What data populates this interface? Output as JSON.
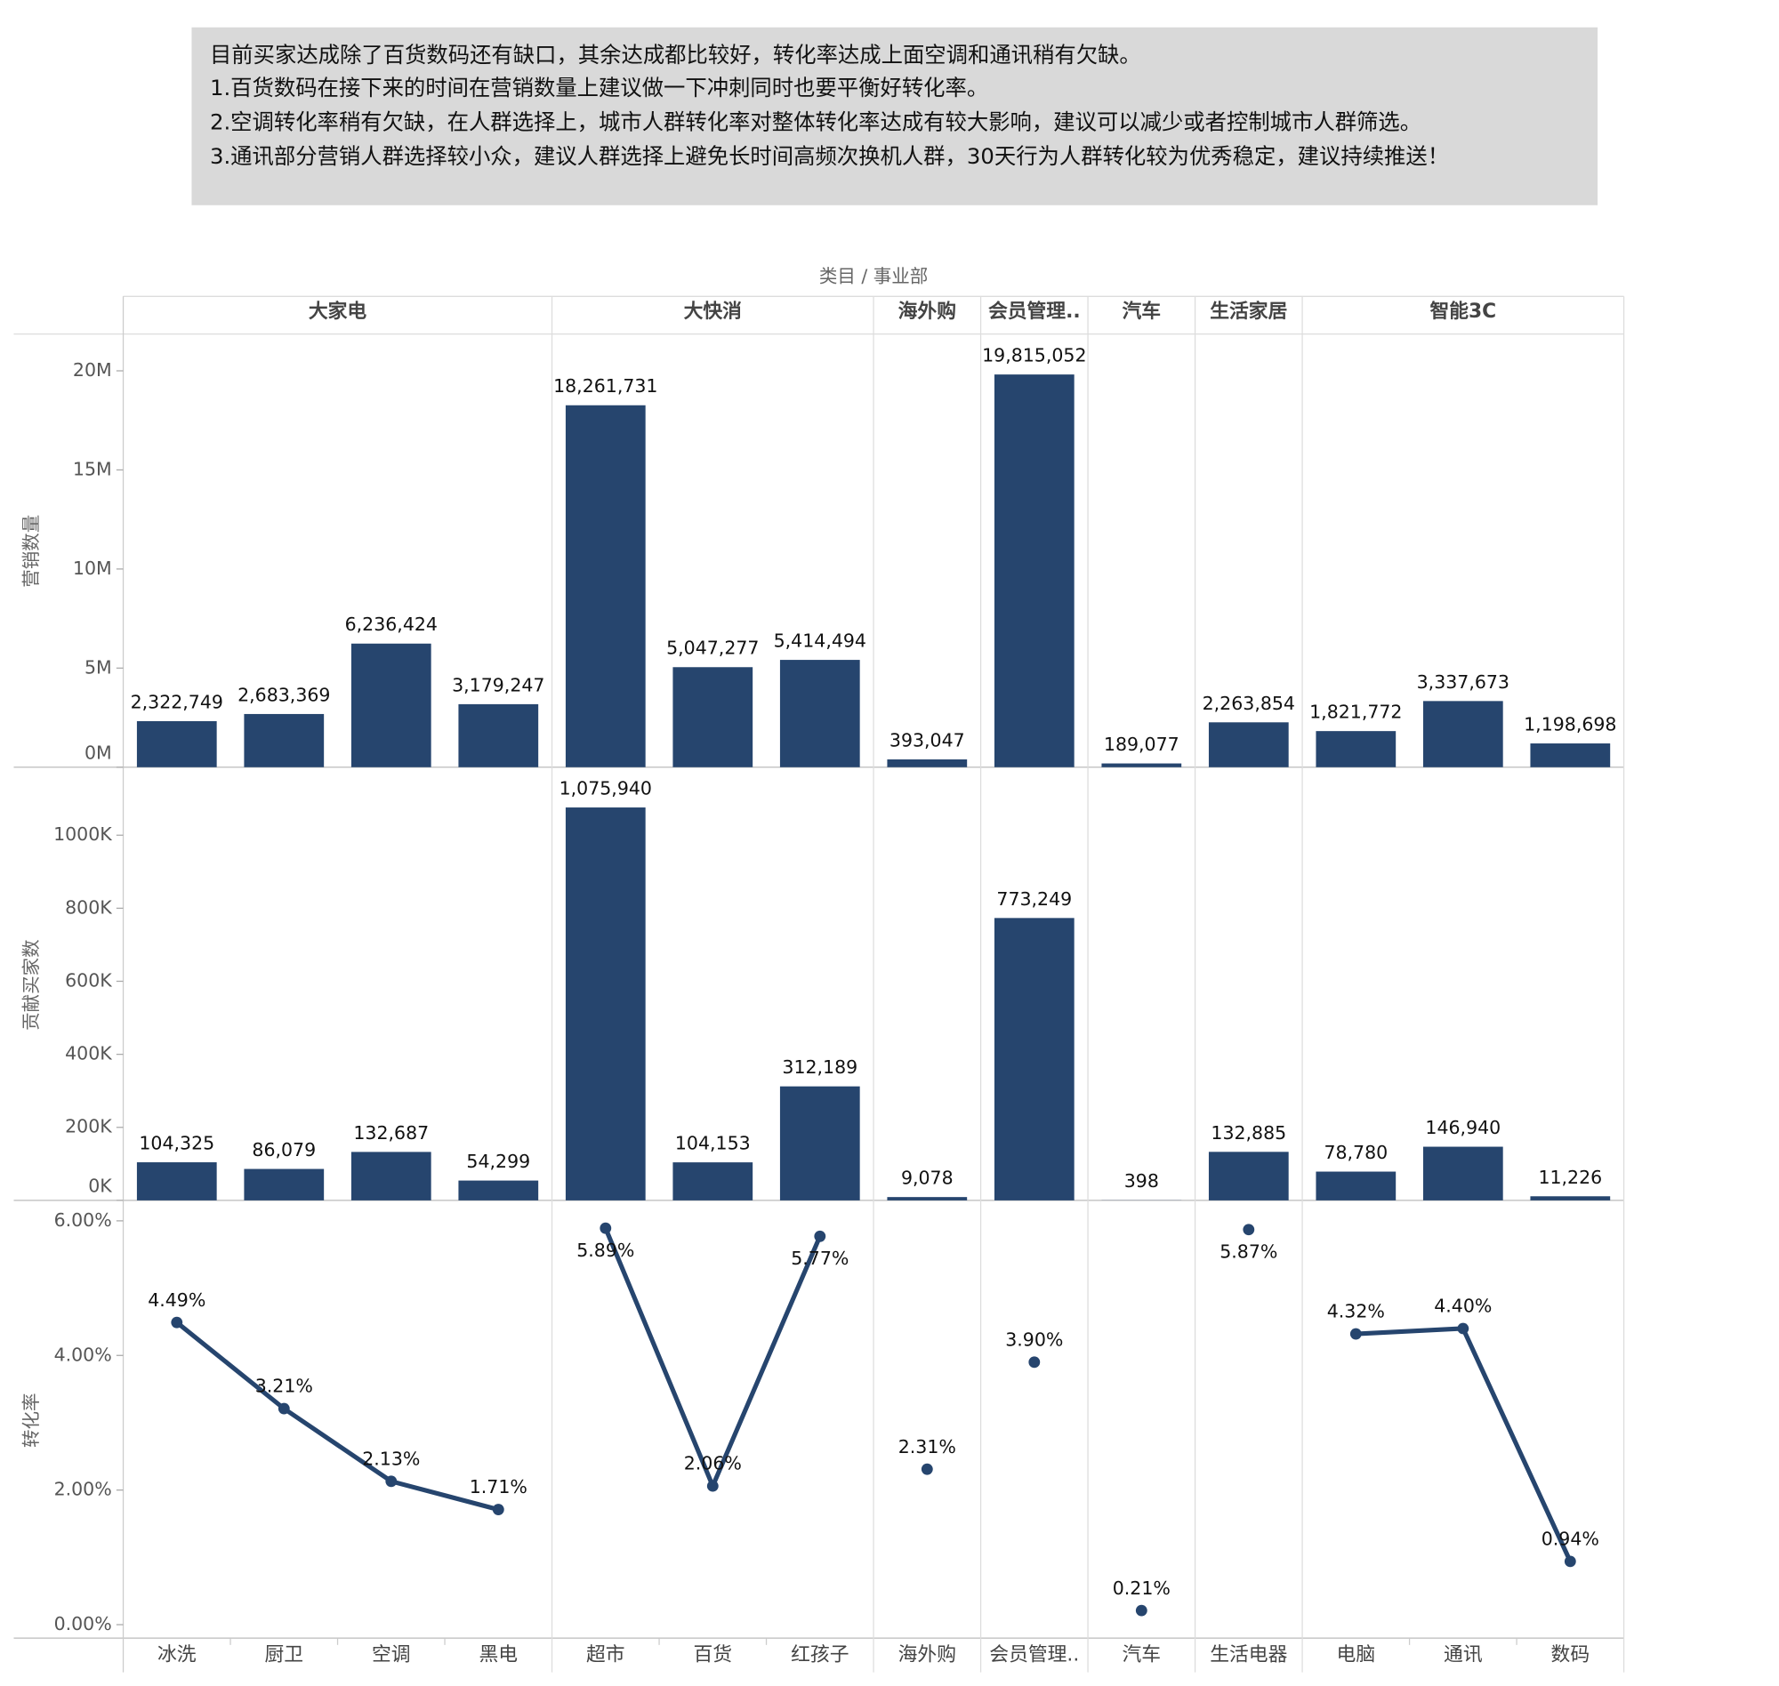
{
  "chart_data": [
    {
      "type": "bar",
      "annotations": [
        "目前买家达成除了百货数码还有缺口，其余达成都比较好，转化率达成上面空调和通讯稍有欠缺。",
        "1.百货数码在接下来的时间在营销数量上建议做一下冲刺同时也要平衡好转化率。",
        "2.空调转化率稍有欠缺，在人群选择上，城市人群转化率对整体转化率达成有较大影响，建议可以减少或者控制城市人群筛选。",
        "3.通讯部分营销人群选择较小众，建议人群选择上避免长时间高频次换机人群，30天行为人群转化较为优秀稳定，建议持续推送！"
      ],
      "column_title": "类目  /  事业部",
      "groups": [
        {
          "name": "大家电",
          "categories": [
            "冰洗",
            "厨卫",
            "空调",
            "黑电"
          ]
        },
        {
          "name": "大快消",
          "categories": [
            "超市",
            "百货",
            "红孩子"
          ]
        },
        {
          "name": "海外购",
          "categories": [
            "海外购"
          ]
        },
        {
          "name": "会员管理..",
          "categories": [
            "会员管理.."
          ]
        },
        {
          "name": "汽车",
          "categories": [
            "汽车"
          ]
        },
        {
          "name": "生活家居",
          "categories": [
            "生活电器"
          ]
        },
        {
          "name": "智能3C",
          "categories": [
            "电脑",
            "通讯",
            "数码"
          ]
        }
      ],
      "ylabel": "营销数量",
      "values": [
        2322749,
        2683369,
        6236424,
        3179247,
        18261731,
        5047277,
        5414494,
        393047,
        19815052,
        189077,
        2263854,
        1821772,
        3337673,
        1198698
      ],
      "value_labels": [
        "2,322,749",
        "2,683,369",
        "6,236,424",
        "3,179,247",
        "18,261,731",
        "5,047,277",
        "5,414,494",
        "393,047",
        "19,815,052",
        "189,077",
        "2,263,854",
        "1,821,772",
        "3,337,673",
        "1,198,698"
      ],
      "color": "#26456e",
      "ylim": [
        0,
        21800000
      ],
      "yticks": [
        {
          "value": 0,
          "label": "0M"
        },
        {
          "value": 5000000,
          "label": "5M"
        },
        {
          "value": 10000000,
          "label": "10M"
        },
        {
          "value": 15000000,
          "label": "15M"
        },
        {
          "value": 20000000,
          "label": "20M"
        }
      ]
    },
    {
      "type": "bar",
      "ylabel": "贡献买家数",
      "values": [
        104325,
        86079,
        132687,
        54299,
        1075940,
        104153,
        312189,
        9078,
        773249,
        398,
        132885,
        78780,
        146940,
        11226
      ],
      "value_labels": [
        "104,325",
        "86,079",
        "132,687",
        "54,299",
        "1,075,940",
        "104,153",
        "312,189",
        "9,078",
        "773,249",
        "398",
        "132,885",
        "78,780",
        "146,940",
        "11,226"
      ],
      "color": "#26456e",
      "ylim": [
        0,
        1180000
      ],
      "yticks": [
        {
          "value": 0,
          "label": "0K"
        },
        {
          "value": 200000,
          "label": "200K"
        },
        {
          "value": 400000,
          "label": "400K"
        },
        {
          "value": 600000,
          "label": "600K"
        },
        {
          "value": 800000,
          "label": "800K"
        },
        {
          "value": 1000000,
          "label": "1000K"
        }
      ]
    },
    {
      "type": "line",
      "ylabel": "转化率",
      "values": [
        4.49,
        3.21,
        2.13,
        1.71,
        5.89,
        2.06,
        5.77,
        2.31,
        3.9,
        0.21,
        5.87,
        4.32,
        4.4,
        0.94
      ],
      "value_labels": [
        "4.49%",
        "3.21%",
        "2.13%",
        "1.71%",
        "5.89%",
        "2.06%",
        "5.77%",
        "2.31%",
        "3.90%",
        "0.21%",
        "5.87%",
        "4.32%",
        "4.40%",
        "0.94%"
      ],
      "color": "#26456e",
      "ylim": [
        -0.2,
        6.27
      ],
      "yticks": [
        {
          "value": 0,
          "label": "0.00%"
        },
        {
          "value": 2,
          "label": "2.00%"
        },
        {
          "value": 4,
          "label": "4.00%"
        },
        {
          "value": 6,
          "label": "6.00%"
        }
      ]
    }
  ]
}
